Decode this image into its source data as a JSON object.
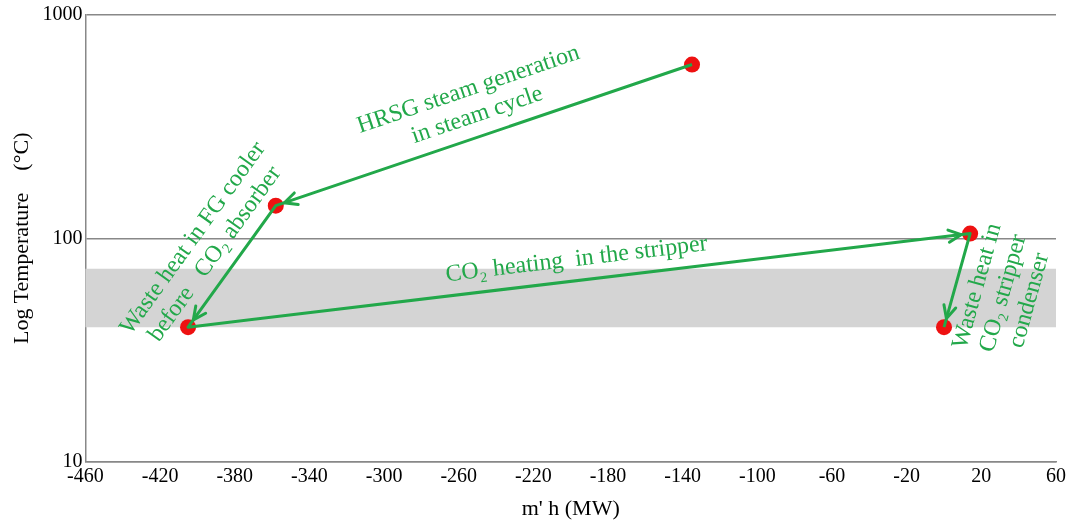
{
  "chart_data": {
    "type": "line",
    "xlabel": "m' h (MW)",
    "ylabel": "Log Temperature    (°C)",
    "xlim": [
      -460,
      60
    ],
    "xticks": [
      -460,
      -420,
      -380,
      -340,
      -300,
      -260,
      -220,
      -180,
      -140,
      -100,
      -60,
      -20,
      20,
      60
    ],
    "ylim": [
      10,
      1000
    ],
    "yticks": [
      10,
      100,
      1000
    ],
    "log": "y",
    "grid": "y",
    "legend": false,
    "series": [
      {
        "type": "line",
        "color": "#22a84a",
        "marker": "none",
        "line_style": "solid",
        "x": [
          -135,
          -358,
          -405,
          14,
          0
        ],
        "values": [
          600,
          140,
          40,
          105,
          40
        ]
      },
      {
        "type": "scatter",
        "color": "#ee1111",
        "marker": "circle",
        "x": [
          -135,
          -358,
          -405,
          14,
          0
        ],
        "values": [
          600,
          140,
          40,
          105,
          40
        ]
      }
    ],
    "bands": [
      {
        "axis": "y",
        "from": 40,
        "to": 73,
        "color": "#d4d4d4"
      }
    ],
    "annotations": [
      "HRSG steam generation\nin steam cycle",
      "Waste heat in FG cooler\nbefore   CO₂ absorber",
      "CO₂ heating  in the stripper",
      "Waste heat in\nCO₂ stripper\ncondenser"
    ]
  }
}
